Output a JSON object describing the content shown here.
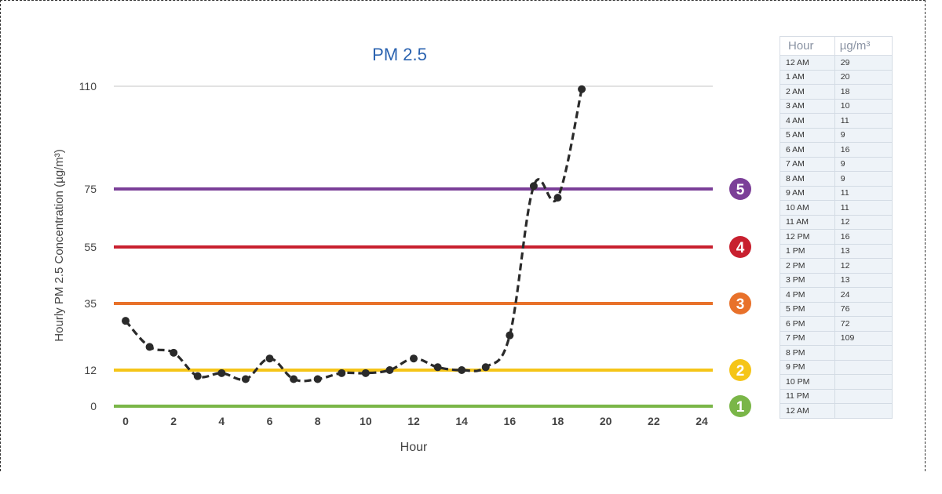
{
  "chart_data": {
    "type": "line",
    "title": "PM 2.5",
    "xlabel": "Hour",
    "ylabel": "Hourly PM 2.5 Concentration (µg/m³)",
    "xlim": [
      0,
      24
    ],
    "x_ticks": [
      "0",
      "2",
      "4",
      "6",
      "8",
      "10",
      "12",
      "14",
      "16",
      "18",
      "20",
      "22",
      "24"
    ],
    "y_ticks": [
      "0",
      "12",
      "35",
      "55",
      "75",
      "110"
    ],
    "series": [
      {
        "x": [
          0,
          1,
          2,
          3,
          4,
          5,
          6,
          7,
          8,
          9,
          10,
          11,
          12,
          13,
          14,
          15,
          16,
          17,
          18,
          19
        ],
        "values": [
          29,
          20,
          18,
          10,
          11,
          9,
          16,
          9,
          9,
          11,
          11,
          12,
          16,
          13,
          12,
          13,
          24,
          76,
          72,
          109
        ]
      }
    ],
    "thresholds": [
      {
        "value": 0,
        "label": "1",
        "color": "#7ab648"
      },
      {
        "value": 12,
        "label": "2",
        "color": "#f5c518"
      },
      {
        "value": 35,
        "label": "3",
        "color": "#e8712a"
      },
      {
        "value": 55,
        "label": "4",
        "color": "#c8202f"
      },
      {
        "value": 75,
        "label": "5",
        "color": "#7b3f98"
      }
    ],
    "colors": {
      "title": "#2b63b0",
      "line": "#2a2a2a",
      "grid": "#d9d9d9",
      "axis_text": "#444444"
    }
  },
  "table": {
    "headers": [
      "Hour",
      "µg/m³"
    ],
    "rows": [
      [
        "12 AM",
        "29"
      ],
      [
        "1 AM",
        "20"
      ],
      [
        "2 AM",
        "18"
      ],
      [
        "3 AM",
        "10"
      ],
      [
        "4 AM",
        "11"
      ],
      [
        "5 AM",
        "9"
      ],
      [
        "6 AM",
        "16"
      ],
      [
        "7 AM",
        "9"
      ],
      [
        "8 AM",
        "9"
      ],
      [
        "9 AM",
        "11"
      ],
      [
        "10 AM",
        "11"
      ],
      [
        "11 AM",
        "12"
      ],
      [
        "12 PM",
        "16"
      ],
      [
        "1 PM",
        "13"
      ],
      [
        "2 PM",
        "12"
      ],
      [
        "3 PM",
        "13"
      ],
      [
        "4 PM",
        "24"
      ],
      [
        "5 PM",
        "76"
      ],
      [
        "6 PM",
        "72"
      ],
      [
        "7 PM",
        "109"
      ],
      [
        "8 PM",
        ""
      ],
      [
        "9 PM",
        ""
      ],
      [
        "10 PM",
        ""
      ],
      [
        "11 PM",
        ""
      ],
      [
        "12 AM",
        ""
      ]
    ]
  }
}
